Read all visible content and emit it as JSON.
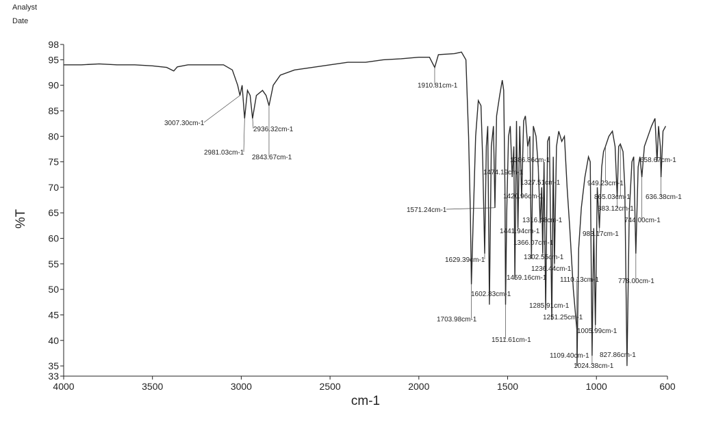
{
  "header": {
    "analyst": "Analyst",
    "date": "Date"
  },
  "chart_data": {
    "type": "line",
    "xlabel": "cm-1",
    "ylabel": "%T",
    "color": "#2a2a2a",
    "xlim": [
      4000,
      600
    ],
    "xticks": [
      4000,
      3500,
      3000,
      2500,
      2000,
      1500,
      1000,
      600
    ],
    "ylim": [
      33,
      98
    ],
    "yticks": [
      33,
      35,
      40,
      45,
      50,
      55,
      60,
      65,
      70,
      75,
      80,
      85,
      90,
      95,
      98
    ],
    "x": [
      4000,
      3900,
      3800,
      3700,
      3600,
      3500,
      3420,
      3380,
      3360,
      3300,
      3200,
      3100,
      3050,
      3020,
      3007.3,
      2995,
      2981.03,
      2965,
      2950,
      2936.32,
      2915,
      2880,
      2860,
      2843.67,
      2820,
      2780,
      2700,
      2600,
      2500,
      2400,
      2300,
      2200,
      2100,
      2000,
      1940,
      1910.81,
      1890,
      1800,
      1760,
      1735,
      1720,
      1710,
      1703.98,
      1695,
      1680,
      1665,
      1650,
      1640,
      1629.39,
      1620,
      1612,
      1602.83,
      1592,
      1580,
      1571.24,
      1562,
      1545,
      1530,
      1522,
      1515,
      1511.61,
      1505,
      1495,
      1485,
      1474.19,
      1465,
      1459.16,
      1450,
      1441.94,
      1432,
      1420.96,
      1410,
      1400,
      1386.86,
      1375,
      1366.07,
      1355,
      1340,
      1327.51,
      1316.48,
      1308,
      1302.55,
      1295,
      1285.91,
      1275,
      1265,
      1251.25,
      1243,
      1236.44,
      1225,
      1212,
      1195,
      1180,
      1165,
      1150,
      1130,
      1110.13,
      1109.4,
      1100,
      1085,
      1065,
      1045,
      1035,
      1024.38,
      1015,
      1005.99,
      995,
      983.17,
      970,
      960,
      949.23,
      930,
      910,
      895,
      883.12,
      875,
      865.03,
      850,
      840,
      827.86,
      815,
      800,
      790,
      778,
      765,
      755,
      744,
      730,
      710,
      690,
      670,
      658.67,
      650,
      640,
      636.38,
      625,
      610
    ],
    "values": [
      94,
      94,
      94.2,
      94,
      94,
      93.8,
      93.5,
      92.8,
      93.6,
      94,
      94,
      94,
      93,
      90,
      88,
      90,
      83.5,
      89,
      88,
      83.5,
      88,
      89,
      88,
      86,
      90,
      92,
      93,
      93.5,
      94,
      94.5,
      94.5,
      95,
      95.2,
      95.5,
      95.5,
      93.5,
      96,
      96.2,
      96.5,
      95,
      80,
      65,
      51,
      62,
      80,
      87,
      86,
      75,
      57,
      78,
      82,
      47,
      78,
      82,
      66,
      84,
      88,
      91,
      89,
      70,
      47,
      65,
      80,
      82,
      72,
      78,
      52,
      83,
      62,
      82,
      68,
      83,
      84,
      78,
      80,
      56,
      82,
      80,
      74,
      63,
      70,
      57,
      75,
      46,
      79,
      80,
      44,
      76,
      55,
      78,
      81,
      79,
      80,
      70,
      62,
      50,
      42,
      35,
      58,
      66,
      72,
      76,
      75,
      37,
      62,
      43,
      70,
      62,
      74,
      77,
      78,
      80,
      81,
      78,
      68,
      78,
      78.5,
      77,
      70,
      35,
      65,
      75,
      76,
      57,
      74,
      76,
      72,
      78,
      80,
      82,
      83.5,
      75,
      82,
      78,
      72,
      81,
      82
    ],
    "annotations": [
      {
        "label": "3007.30cm-1",
        "x": 3007.3,
        "y": 88
      },
      {
        "label": "2981.03cm-1",
        "x": 2981.03,
        "y": 83.5
      },
      {
        "label": "2936.32cm-1",
        "x": 2936.32,
        "y": 83.5
      },
      {
        "label": "2843.67cm-1",
        "x": 2843.67,
        "y": 86
      },
      {
        "label": "1910.81cm-1",
        "x": 1910.81,
        "y": 93.5
      },
      {
        "label": "1571.24cm-1",
        "x": 1571.24,
        "y": 66
      },
      {
        "label": "1474.19cm-1",
        "x": 1474.19,
        "y": 72
      },
      {
        "label": "1386.86cm-1",
        "x": 1386.86,
        "y": 78
      },
      {
        "label": "1327.51cm-1",
        "x": 1327.51,
        "y": 74
      },
      {
        "label": "1420.96cm-1",
        "x": 1420.96,
        "y": 68
      },
      {
        "label": "1316.48cm-1",
        "x": 1316.48,
        "y": 63
      },
      {
        "label": "1441.94cm-1",
        "x": 1441.94,
        "y": 62
      },
      {
        "label": "1366.07cm-1",
        "x": 1366.07,
        "y": 56
      },
      {
        "label": "1302.55cm-1",
        "x": 1302.55,
        "y": 57
      },
      {
        "label": "1236.44cm-1",
        "x": 1236.44,
        "y": 55
      },
      {
        "label": "1459.16cm-1",
        "x": 1459.16,
        "y": 52
      },
      {
        "label": "1110.13cm-1",
        "x": 1110.13,
        "y": 42
      },
      {
        "label": "1629.39cm-1",
        "x": 1629.39,
        "y": 57
      },
      {
        "label": "1602.83cm-1",
        "x": 1602.83,
        "y": 47
      },
      {
        "label": "1285.91cm-1",
        "x": 1285.91,
        "y": 46
      },
      {
        "label": "1251.25cm-1",
        "x": 1251.25,
        "y": 44
      },
      {
        "label": "1703.98cm-1",
        "x": 1703.98,
        "y": 51
      },
      {
        "label": "1511.61cm-1",
        "x": 1511.61,
        "y": 47
      },
      {
        "label": "1005.99cm-1",
        "x": 1005.99,
        "y": 43
      },
      {
        "label": "1109.40cm-1",
        "x": 1109.4,
        "y": 35
      },
      {
        "label": "1024.38cm-1",
        "x": 1024.38,
        "y": 37
      },
      {
        "label": "827.86cm-1",
        "x": 827.86,
        "y": 35
      },
      {
        "label": "778.00cm-1",
        "x": 778.0,
        "y": 57
      },
      {
        "label": "983.17cm-1",
        "x": 983.17,
        "y": 62
      },
      {
        "label": "883.12cm-1",
        "x": 883.12,
        "y": 68
      },
      {
        "label": "744.00cm-1",
        "x": 744.0,
        "y": 72
      },
      {
        "label": "865.03cm-1",
        "x": 865.03,
        "y": 78.5
      },
      {
        "label": "636.38cm-1",
        "x": 636.38,
        "y": 72
      },
      {
        "label": "949.23cm-1",
        "x": 949.23,
        "y": 78
      },
      {
        "label": "658.67cm-1",
        "x": 658.67,
        "y": 75
      }
    ]
  }
}
